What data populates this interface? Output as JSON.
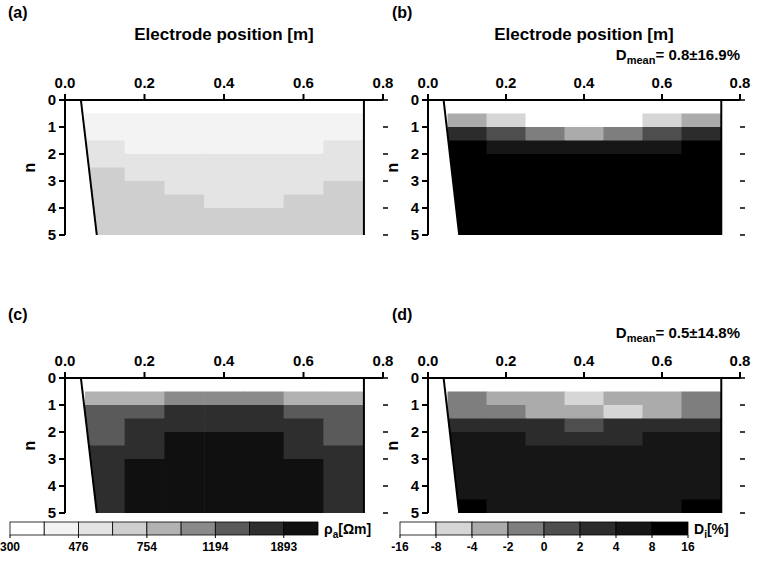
{
  "chart_data": [
    {
      "type": "heatmap",
      "panel": "(a)",
      "xlabel": "Electrode position [m]",
      "ylabel": "n",
      "xlim": [
        0,
        0.8
      ],
      "xticks": [
        {
          "value": 0,
          "label": "0.0"
        },
        0.2,
        0.4,
        0.6,
        0.8
      ],
      "ylim": [
        0,
        5
      ],
      "yticks": [
        0,
        1,
        2,
        3,
        4,
        5
      ],
      "x": [
        0.1,
        0.2,
        0.3,
        0.4,
        0.5,
        0.6,
        0.7
      ],
      "y": [
        0.75,
        1.25,
        1.75,
        2.25,
        2.75,
        3.25,
        3.75,
        4.25,
        4.75
      ],
      "cells": [
        [
          420,
          400,
          390,
          380,
          390,
          400,
          420
        ],
        [
          450,
          430,
          410,
          400,
          410,
          420,
          440
        ],
        [
          500,
          470,
          450,
          440,
          450,
          460,
          480
        ],
        [
          540,
          510,
          490,
          480,
          490,
          500,
          520
        ],
        [
          600,
          560,
          530,
          520,
          530,
          540,
          560
        ],
        [
          700,
          620,
          580,
          560,
          570,
          590,
          620
        ],
        [
          720,
          650,
          600,
          580,
          590,
          610,
          650
        ],
        [
          690,
          640,
          610,
          600,
          610,
          620,
          660
        ],
        [
          700,
          660,
          630,
          620,
          630,
          650,
          700
        ]
      ]
    },
    {
      "type": "heatmap",
      "panel": "(b)",
      "xlabel": "Electrode position [m]",
      "ylabel": "n",
      "annotation": {
        "symbol": "D",
        "subscript": "mean",
        "text": "= 0.8±16.9%"
      },
      "xlim": [
        0,
        0.8
      ],
      "xticks": [
        {
          "value": 0,
          "label": "0.0"
        },
        0.2,
        0.4,
        0.6,
        0.8
      ],
      "ylim": [
        0,
        5
      ],
      "yticks": [
        0,
        1,
        2,
        3,
        4,
        5
      ],
      "x": [
        0.1,
        0.2,
        0.3,
        0.4,
        0.5,
        0.6,
        0.7
      ],
      "y": [
        0.75,
        1.25,
        1.75,
        2.25,
        2.75,
        3.25,
        3.75,
        4.25,
        4.75
      ],
      "cells": [
        [
          -4,
          -8,
          -10,
          -12,
          -10,
          -8,
          -4
        ],
        [
          2,
          1,
          -1,
          -3,
          -1,
          1,
          3
        ],
        [
          8,
          6,
          4,
          4,
          5,
          6,
          8
        ],
        [
          10,
          9,
          8,
          8,
          8,
          9,
          10
        ],
        [
          12,
          10,
          9,
          9,
          9,
          10,
          12
        ],
        [
          12,
          11,
          10,
          10,
          10,
          11,
          12
        ],
        [
          14,
          12,
          11,
          10,
          11,
          12,
          14
        ],
        [
          14,
          12,
          11,
          11,
          11,
          12,
          14
        ],
        [
          16,
          14,
          12,
          12,
          12,
          14,
          16
        ]
      ]
    },
    {
      "type": "heatmap",
      "panel": "(c)",
      "ylabel": "n",
      "xlim": [
        0,
        0.8
      ],
      "xticks": [
        {
          "value": 0,
          "label": "0.0"
        },
        0.2,
        0.4,
        0.6,
        0.8
      ],
      "ylim": [
        0,
        5
      ],
      "yticks": [
        0,
        1,
        2,
        3,
        4,
        5
      ],
      "x": [
        0.1,
        0.2,
        0.3,
        0.4,
        0.5,
        0.6,
        0.7
      ],
      "y": [
        0.75,
        1.25,
        1.75,
        2.25,
        2.75,
        3.25,
        3.75,
        4.25,
        4.75
      ],
      "cells": [
        [
          800,
          900,
          950,
          980,
          950,
          900,
          800
        ],
        [
          1300,
          1500,
          1700,
          1750,
          1700,
          1500,
          1300
        ],
        [
          1400,
          1600,
          1800,
          1850,
          1800,
          1600,
          1400
        ],
        [
          1500,
          1700,
          1900,
          1950,
          1900,
          1700,
          1500
        ],
        [
          1600,
          1800,
          2000,
          2050,
          2000,
          1800,
          1600
        ],
        [
          1700,
          1900,
          2100,
          2100,
          2050,
          1900,
          1700
        ],
        [
          1700,
          1900,
          2100,
          2150,
          2100,
          1900,
          1700
        ],
        [
          1750,
          1950,
          2150,
          2200,
          2100,
          1950,
          1750
        ],
        [
          1800,
          2000,
          2200,
          2200,
          2150,
          2000,
          1800
        ]
      ],
      "colorbar": {
        "label": {
          "symbol": "ρ",
          "subscript": "a",
          "unit": "[Ωm]"
        },
        "log": true,
        "bins": [
          300,
          378,
          476,
          600,
          754,
          950,
          1194,
          1504,
          1893,
          2384
        ],
        "colors": [
          "#ffffff",
          "#f3f3f3",
          "#e4e4e4",
          "#cfcfcf",
          "#b2b2b2",
          "#8a8a8a",
          "#5a5a5a",
          "#2e2e2e",
          "#101010"
        ],
        "ticks": [
          300,
          476,
          754,
          1194,
          1893
        ]
      }
    },
    {
      "type": "heatmap",
      "panel": "(d)",
      "ylabel": "n",
      "annotation": {
        "symbol": "D",
        "subscript": "mean",
        "text": "= 0.5±14.8%"
      },
      "xlim": [
        0,
        0.8
      ],
      "xticks": [
        {
          "value": 0,
          "label": "0.0"
        },
        0.2,
        0.4,
        0.6,
        0.8
      ],
      "ylim": [
        0,
        5
      ],
      "yticks": [
        0,
        1,
        2,
        3,
        4,
        5
      ],
      "x": [
        0.1,
        0.2,
        0.3,
        0.4,
        0.5,
        0.6,
        0.7
      ],
      "y": [
        0.75,
        1.25,
        1.75,
        2.25,
        2.75,
        3.25,
        3.75,
        4.25,
        4.75
      ],
      "cells": [
        [
          -2,
          -3,
          -4,
          -5,
          -4,
          -3,
          -2
        ],
        [
          -1,
          -2,
          -3,
          -4,
          -5,
          -3,
          -1
        ],
        [
          3,
          2,
          2,
          1,
          2,
          2,
          3
        ],
        [
          5,
          4,
          3,
          3,
          3,
          4,
          5
        ],
        [
          6,
          5,
          4,
          4,
          4,
          5,
          6
        ],
        [
          6,
          5,
          5,
          4,
          5,
          5,
          6
        ],
        [
          7,
          6,
          5,
          5,
          5,
          6,
          7
        ],
        [
          7,
          6,
          6,
          5,
          6,
          6,
          7
        ],
        [
          8,
          7,
          6,
          6,
          6,
          7,
          8
        ]
      ],
      "colorbar": {
        "label": {
          "symbol": "D",
          "subscript": "i",
          "unit": "[%]"
        },
        "bins": [
          -16,
          -8,
          -4,
          -2,
          0,
          2,
          4,
          8,
          16
        ],
        "colors": [
          "#ffffff",
          "#d6d6d6",
          "#ababab",
          "#7e7e7e",
          "#4e4e4e",
          "#2c2c2c",
          "#161616",
          "#000000"
        ],
        "ticks": [
          -16,
          -8,
          -4,
          -2,
          0,
          2,
          4,
          8,
          16
        ]
      }
    }
  ]
}
